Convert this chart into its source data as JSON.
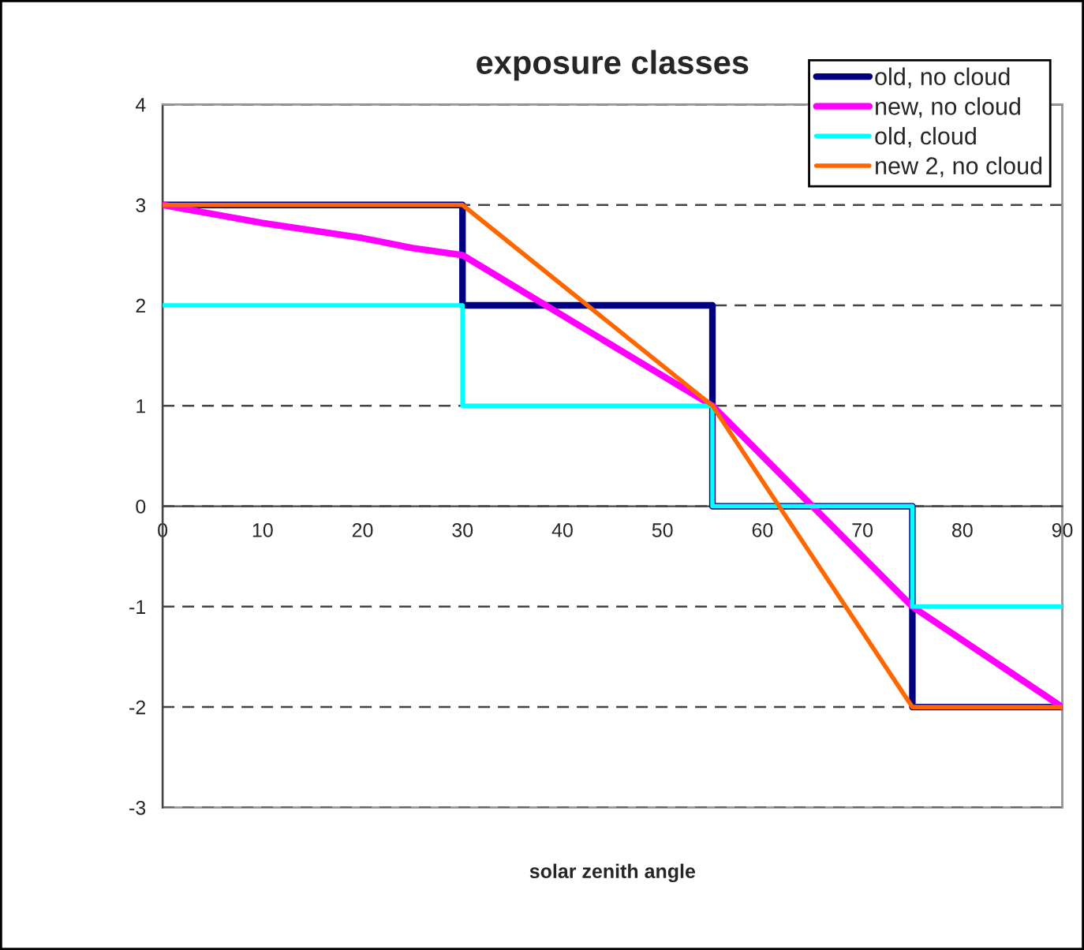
{
  "chart_data": {
    "type": "line",
    "title": "exposure classes",
    "xlabel": "solar zenith angle",
    "series": [
      {
        "name": "old, no cloud",
        "color": "#000080",
        "x": [
          0,
          30,
          30,
          55,
          55,
          75,
          75,
          90
        ],
        "values": [
          3,
          3,
          2,
          2,
          0,
          0,
          -2,
          -2
        ]
      },
      {
        "name": "new, no cloud",
        "color": "#ff00ff",
        "x": [
          0,
          10,
          20,
          25,
          30,
          55,
          75,
          90
        ],
        "values": [
          3,
          2.82,
          2.67,
          2.57,
          2.5,
          1,
          -1,
          -2
        ]
      },
      {
        "name": "old, cloud",
        "color": "#00ffff",
        "x": [
          0,
          30,
          30,
          55,
          55,
          75,
          75,
          90
        ],
        "values": [
          2,
          2,
          1,
          1,
          0,
          0,
          -1,
          -1
        ]
      },
      {
        "name": "new 2, no cloud",
        "color": "#ff6600",
        "x": [
          0,
          30,
          55,
          75,
          90
        ],
        "values": [
          3,
          3,
          1,
          -2,
          -2
        ]
      }
    ],
    "xlim": [
      0,
      90
    ],
    "xticks": [
      0,
      10,
      20,
      30,
      40,
      50,
      60,
      70,
      80,
      90
    ],
    "ylim": [
      -3,
      4
    ],
    "yticks": [
      -3,
      -2,
      -1,
      0,
      1,
      2,
      3,
      4
    ],
    "grid": "y",
    "legend": "top right",
    "marker": "none",
    "line_style": "solid"
  }
}
